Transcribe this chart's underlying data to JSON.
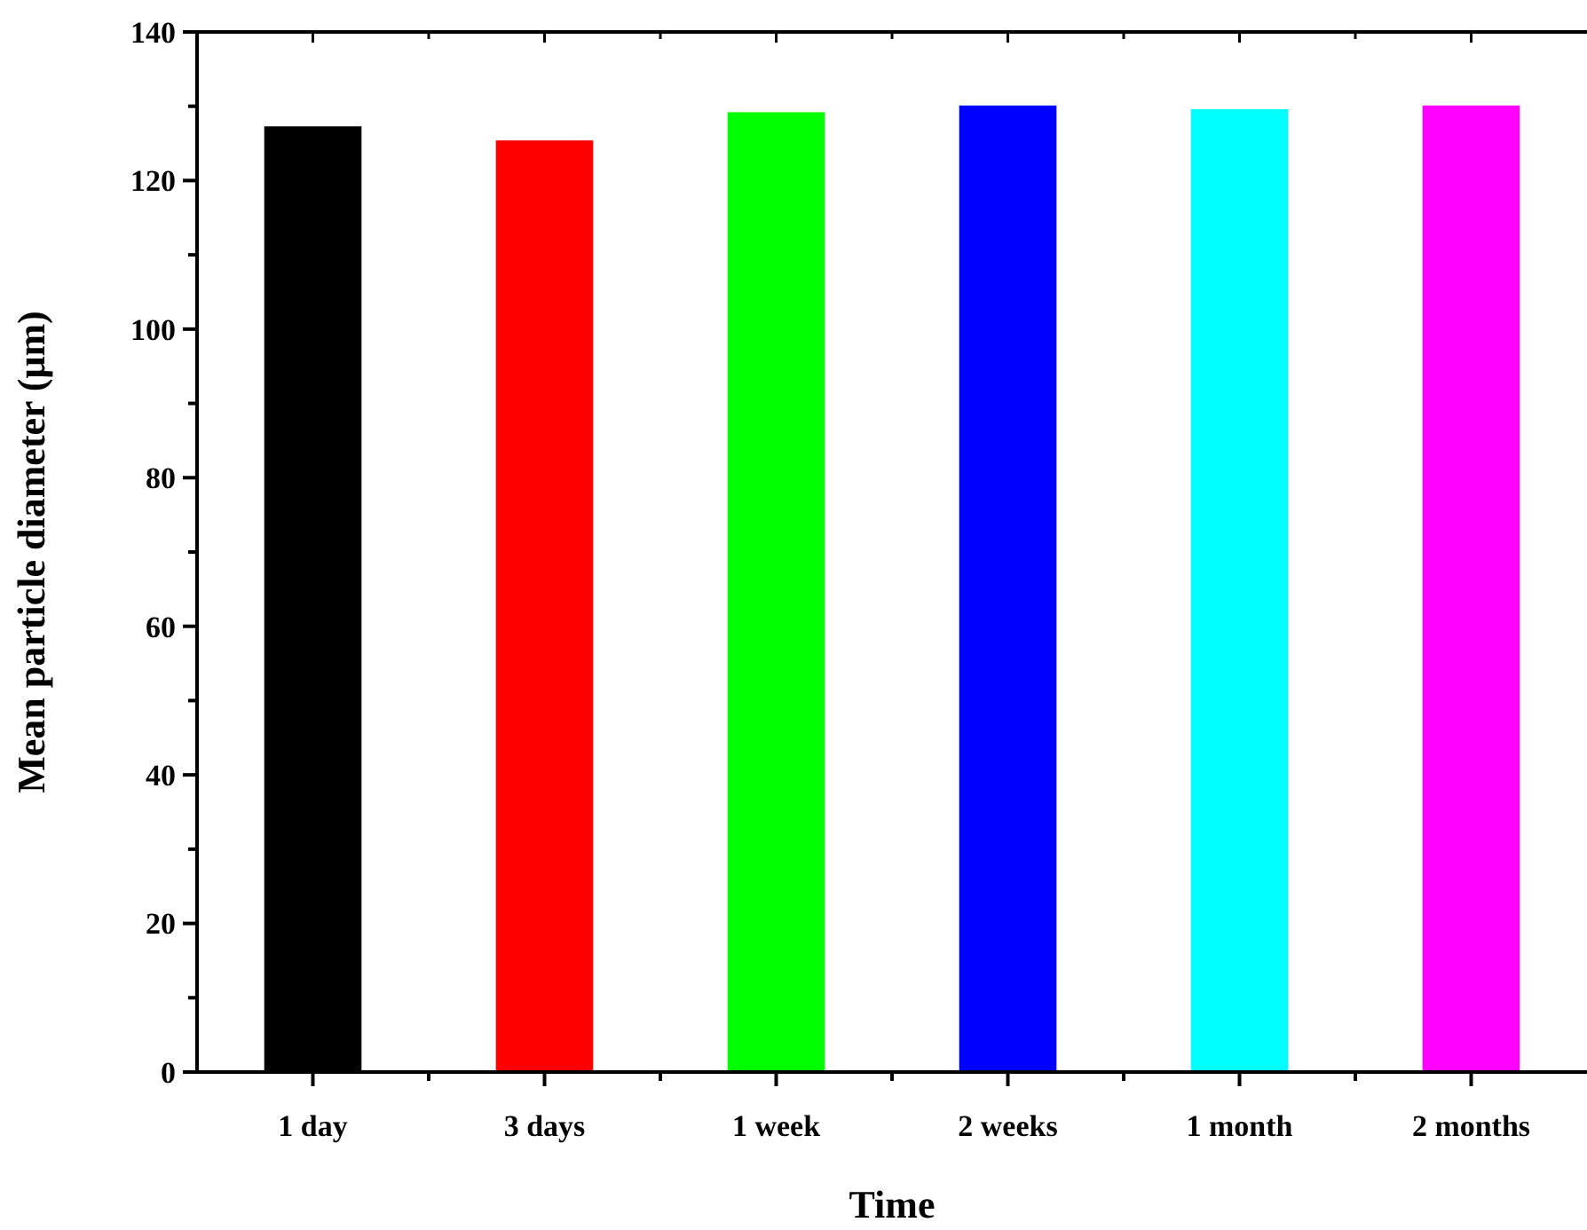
{
  "chart_data": {
    "type": "bar",
    "xlabel": "Time",
    "ylabel": "Mean particle diameter (μm)",
    "categories": [
      "1 day",
      "3 days",
      "1 week",
      "2 weeks",
      "1 month",
      "2 months"
    ],
    "values": [
      127.3,
      125.4,
      129.2,
      130.1,
      129.6,
      130.1
    ],
    "colors": [
      "#000000",
      "#ff0000",
      "#00ff00",
      "#0000ff",
      "#00ffff",
      "#ff00ff"
    ],
    "ylim": [
      0,
      140
    ],
    "yticks": [
      0,
      20,
      40,
      60,
      80,
      100,
      120,
      140
    ],
    "grid": false
  }
}
